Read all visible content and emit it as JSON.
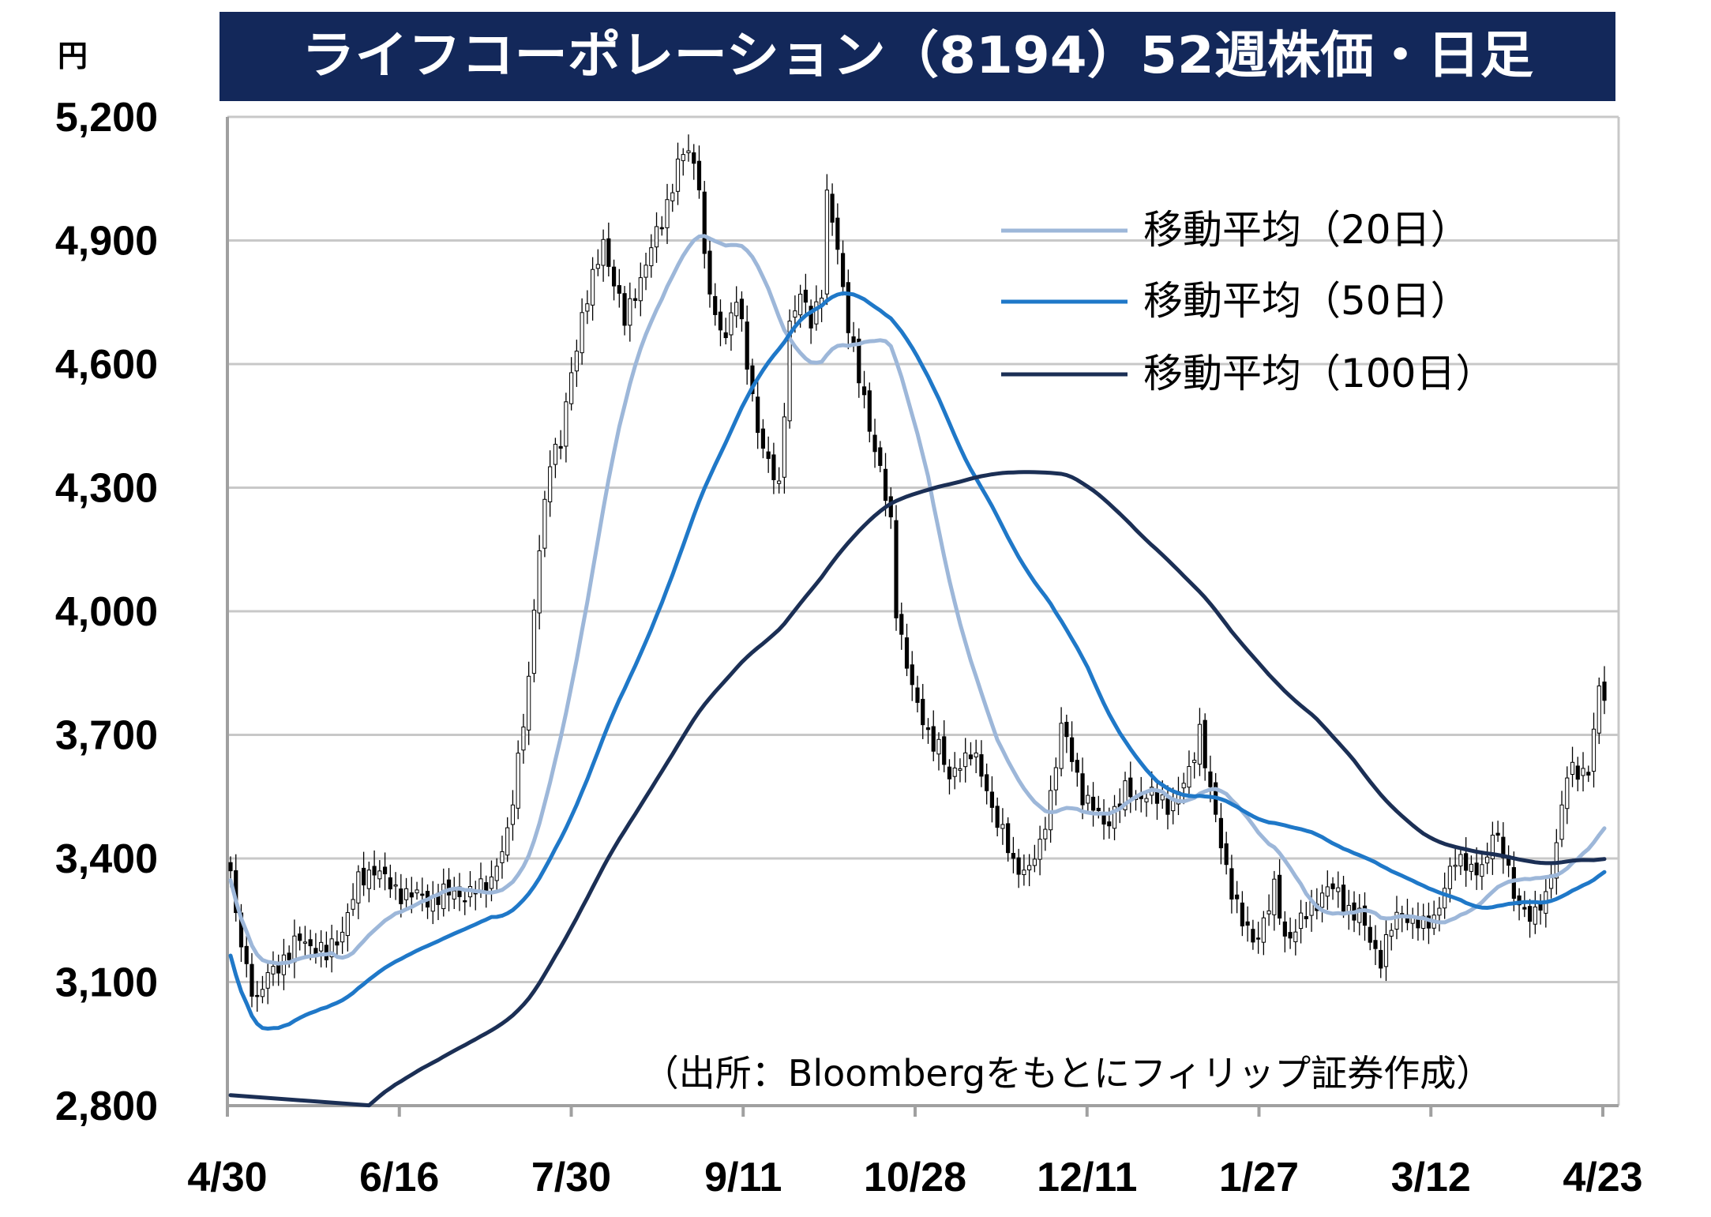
{
  "chart_data": {
    "type": "candlestick",
    "title": "ライフコーポレーション（8194）52週株価・日足",
    "unit_label": "円",
    "source": "（出所：Bloombergをもとにフィリップ証券作成）",
    "ylim": [
      2800,
      5200
    ],
    "yticks": [
      "5,200",
      "4,900",
      "4,600",
      "4,300",
      "4,000",
      "3,700",
      "3,400",
      "3,100",
      "2,800"
    ],
    "ytick_values": [
      5200,
      4900,
      4600,
      4300,
      4000,
      3700,
      3400,
      3100,
      2800
    ],
    "xticks": [
      "4/30",
      "6/16",
      "7/30",
      "9/11",
      "10/28",
      "12/11",
      "1/27",
      "3/12",
      "4/23"
    ],
    "grid": true,
    "legend_position": "top-right",
    "legend": [
      "移動平均（20日）",
      "移動平均（50日）",
      "移動平均（100日）"
    ],
    "series_colors": [
      "#9db7d9",
      "#1f78c8",
      "#1b2f55"
    ],
    "title_bg": "#13285a",
    "price_anchors": [
      [
        0,
        3370
      ],
      [
        1,
        3250
      ],
      [
        3,
        3130
      ],
      [
        5,
        3060
      ],
      [
        7,
        3110
      ],
      [
        10,
        3160
      ],
      [
        13,
        3200
      ],
      [
        16,
        3190
      ],
      [
        18,
        3160
      ],
      [
        21,
        3230
      ],
      [
        24,
        3340
      ],
      [
        27,
        3380
      ],
      [
        30,
        3330
      ],
      [
        34,
        3310
      ],
      [
        38,
        3300
      ],
      [
        42,
        3320
      ],
      [
        45,
        3310
      ],
      [
        48,
        3340
      ],
      [
        50,
        3380
      ],
      [
        52,
        3450
      ],
      [
        54,
        3650
      ],
      [
        56,
        3830
      ],
      [
        58,
        4150
      ],
      [
        60,
        4380
      ],
      [
        62,
        4400
      ],
      [
        64,
        4580
      ],
      [
        66,
        4720
      ],
      [
        68,
        4800
      ],
      [
        70,
        4900
      ],
      [
        72,
        4800
      ],
      [
        74,
        4700
      ],
      [
        76,
        4780
      ],
      [
        78,
        4840
      ],
      [
        81,
        4950
      ],
      [
        84,
        5080
      ],
      [
        86,
        5120
      ],
      [
        88,
        5050
      ],
      [
        89,
        4850
      ],
      [
        91,
        4700
      ],
      [
        93,
        4680
      ],
      [
        95,
        4760
      ],
      [
        97,
        4600
      ],
      [
        99,
        4450
      ],
      [
        101,
        4350
      ],
      [
        103,
        4300
      ],
      [
        105,
        4700
      ],
      [
        107,
        4760
      ],
      [
        109,
        4710
      ],
      [
        111,
        4780
      ],
      [
        112,
        5000
      ],
      [
        114,
        4880
      ],
      [
        116,
        4700
      ],
      [
        118,
        4560
      ],
      [
        120,
        4450
      ],
      [
        122,
        4350
      ],
      [
        124,
        4200
      ],
      [
        125,
        4000
      ],
      [
        127,
        3880
      ],
      [
        129,
        3760
      ],
      [
        131,
        3700
      ],
      [
        133,
        3680
      ],
      [
        135,
        3580
      ],
      [
        137,
        3640
      ],
      [
        139,
        3660
      ],
      [
        141,
        3600
      ],
      [
        143,
        3530
      ],
      [
        145,
        3460
      ],
      [
        147,
        3380
      ],
      [
        150,
        3380
      ],
      [
        152,
        3420
      ],
      [
        154,
        3560
      ],
      [
        156,
        3720
      ],
      [
        158,
        3640
      ],
      [
        160,
        3560
      ],
      [
        162,
        3520
      ],
      [
        164,
        3480
      ],
      [
        166,
        3520
      ],
      [
        168,
        3560
      ],
      [
        170,
        3550
      ],
      [
        172,
        3560
      ],
      [
        174,
        3540
      ],
      [
        176,
        3530
      ],
      [
        178,
        3560
      ],
      [
        180,
        3600
      ],
      [
        182,
        3720
      ],
      [
        184,
        3560
      ],
      [
        186,
        3430
      ],
      [
        188,
        3330
      ],
      [
        190,
        3240
      ],
      [
        192,
        3200
      ],
      [
        194,
        3250
      ],
      [
        196,
        3320
      ],
      [
        198,
        3210
      ],
      [
        200,
        3230
      ],
      [
        202,
        3260
      ],
      [
        204,
        3300
      ],
      [
        206,
        3330
      ],
      [
        208,
        3310
      ],
      [
        210,
        3280
      ],
      [
        212,
        3260
      ],
      [
        214,
        3200
      ],
      [
        216,
        3160
      ],
      [
        218,
        3230
      ],
      [
        220,
        3270
      ],
      [
        222,
        3250
      ],
      [
        224,
        3230
      ],
      [
        226,
        3260
      ],
      [
        228,
        3330
      ],
      [
        230,
        3390
      ],
      [
        232,
        3400
      ],
      [
        234,
        3360
      ],
      [
        236,
        3390
      ],
      [
        237,
        3480
      ],
      [
        239,
        3420
      ],
      [
        241,
        3300
      ],
      [
        243,
        3280
      ],
      [
        245,
        3260
      ],
      [
        247,
        3300
      ],
      [
        249,
        3450
      ],
      [
        251,
        3600
      ],
      [
        253,
        3610
      ],
      [
        255,
        3620
      ],
      [
        257,
        3800
      ],
      [
        258,
        3790
      ]
    ]
  }
}
